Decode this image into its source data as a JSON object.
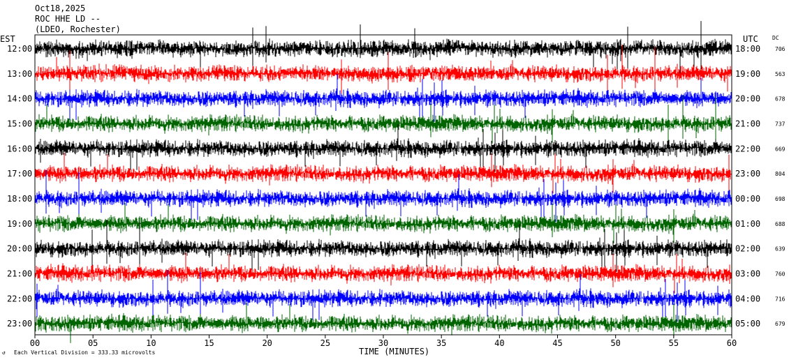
{
  "header": {
    "date": "Oct18,2025",
    "station": "ROC HHE LD --",
    "location": "(LDEO, Rochester)"
  },
  "chart_data": {
    "type": "line",
    "title": "Oct18,2025",
    "subtitle": "ROC HHE LD -- (LDEO, Rochester)",
    "left_axis_label": "EST",
    "right_axis_label": "UTC",
    "dc_label": "DC",
    "xlabel": "TIME (MINUTES)",
    "xlim": [
      0,
      60
    ],
    "x_ticks": [
      "00",
      "05",
      "10",
      "15",
      "20",
      "25",
      "30",
      "35",
      "40",
      "45",
      "50",
      "55",
      "60"
    ],
    "scale_note": "Each Vertical Division = 333.33 microvolts",
    "trace_colors": [
      "#000000",
      "#ff0000",
      "#0000ff",
      "#006400"
    ],
    "rows": [
      {
        "est": "12:00",
        "utc": "18:00",
        "dc": "706"
      },
      {
        "est": "13:00",
        "utc": "19:00",
        "dc": "563"
      },
      {
        "est": "14:00",
        "utc": "20:00",
        "dc": "678"
      },
      {
        "est": "15:00",
        "utc": "21:00",
        "dc": "737"
      },
      {
        "est": "16:00",
        "utc": "22:00",
        "dc": "669"
      },
      {
        "est": "17:00",
        "utc": "23:00",
        "dc": "804"
      },
      {
        "est": "18:00",
        "utc": "00:00",
        "dc": "698"
      },
      {
        "est": "19:00",
        "utc": "01:00",
        "dc": "688"
      },
      {
        "est": "20:00",
        "utc": "02:00",
        "dc": "639"
      },
      {
        "est": "21:00",
        "utc": "03:00",
        "dc": "760"
      },
      {
        "est": "22:00",
        "utc": "04:00",
        "dc": "716"
      },
      {
        "est": "23:00",
        "utc": "05:00",
        "dc": "679"
      }
    ]
  }
}
